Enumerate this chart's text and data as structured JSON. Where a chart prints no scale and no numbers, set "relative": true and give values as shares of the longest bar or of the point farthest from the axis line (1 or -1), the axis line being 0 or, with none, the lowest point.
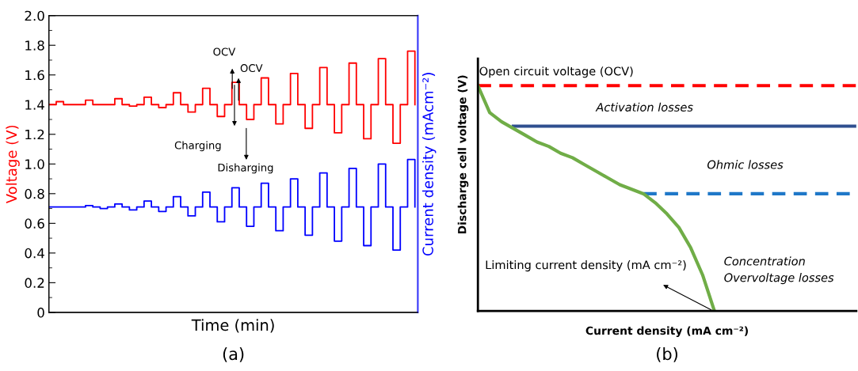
{
  "chart_data": [
    {
      "type": "step",
      "title": "(a)",
      "xlabel": "Time (min)",
      "ylabel": "Voltage (V)",
      "y2label": "Current density (mAcm⁻²)",
      "categories": [
        null,
        null,
        null,
        null,
        null,
        null,
        null,
        null,
        null,
        null,
        null,
        null,
        null,
        null,
        null,
        null,
        null,
        null,
        null,
        null,
        null,
        null,
        null,
        null,
        null,
        null,
        null,
        null,
        null,
        null,
        null,
        null,
        null,
        null,
        null,
        null,
        null,
        null,
        null,
        null,
        null,
        null,
        null,
        null,
        null,
        null,
        null,
        null,
        null,
        null,
        null
      ],
      "series": [
        {
          "color": "#ff0000",
          "values": [
            1.4,
            1.42,
            1.4,
            1.4,
            1.4,
            1.43,
            1.4,
            1.4,
            1.4,
            1.44,
            1.4,
            1.39,
            1.4,
            1.45,
            1.4,
            1.38,
            1.4,
            1.48,
            1.4,
            1.35,
            1.4,
            1.51,
            1.4,
            1.32,
            1.4,
            1.55,
            1.4,
            1.3,
            1.4,
            1.58,
            1.4,
            1.27,
            1.4,
            1.61,
            1.4,
            1.24,
            1.4,
            1.65,
            1.4,
            1.21,
            1.4,
            1.68,
            1.4,
            1.17,
            1.4,
            1.71,
            1.4,
            1.14,
            1.4,
            1.76,
            1.4
          ]
        },
        {
          "color": "#0000ff",
          "values": [
            0.71,
            0.71,
            0.71,
            0.71,
            0.71,
            0.72,
            0.71,
            0.7,
            0.71,
            0.73,
            0.71,
            0.69,
            0.71,
            0.75,
            0.71,
            0.68,
            0.71,
            0.78,
            0.71,
            0.65,
            0.71,
            0.81,
            0.71,
            0.61,
            0.71,
            0.84,
            0.71,
            0.58,
            0.71,
            0.87,
            0.71,
            0.55,
            0.71,
            0.9,
            0.71,
            0.52,
            0.71,
            0.94,
            0.71,
            0.48,
            0.71,
            0.97,
            0.71,
            0.45,
            0.71,
            1.0,
            0.71,
            0.42,
            0.71,
            1.03,
            0.71
          ]
        }
      ],
      "ylim": [
        0,
        2
      ],
      "yticks": [
        0,
        {
          "value": 0.1,
          "label": null
        },
        0.2,
        {
          "value": 0.3,
          "label": null
        },
        0.4,
        {
          "value": 0.5,
          "label": null
        },
        0.6,
        {
          "value": 0.7,
          "label": null
        },
        0.8,
        {
          "value": 0.9,
          "label": null
        },
        {
          "value": 1.0,
          "label": "1.0"
        },
        {
          "value": 1.1,
          "label": null
        },
        1.2,
        {
          "value": 1.3,
          "label": null
        },
        1.4,
        {
          "value": 1.5,
          "label": null
        },
        1.6,
        {
          "value": 1.7,
          "label": null
        },
        1.8,
        {
          "value": 1.9,
          "label": null
        },
        {
          "value": 2.0,
          "label": "2.0"
        }
      ],
      "annotations": [
        "OCV",
        "OCV",
        "Charging",
        "Disharging"
      ],
      "grid": false,
      "legend": false
    },
    {
      "type": "line",
      "title": "(b)",
      "xlabel": "Current density (mA cm⁻²)",
      "ylabel": "Discharge cell voltage (V)",
      "relative": true,
      "marker": "none",
      "categories": [
        null,
        null,
        null,
        null,
        null,
        null,
        null,
        null,
        null,
        null,
        null,
        null,
        null,
        null,
        null,
        null,
        null,
        null,
        null,
        null,
        null,
        null,
        null,
        null,
        null,
        null,
        null,
        null,
        null,
        null,
        null,
        null,
        null
      ],
      "series": [
        {
          "color": "#ff0000",
          "line_style": "dashed",
          "values": [
            1.0,
            1.0,
            1.0,
            1.0,
            1.0,
            1.0,
            1.0,
            1.0,
            1.0,
            1.0,
            1.0,
            1.0,
            1.0,
            1.0,
            1.0,
            1.0,
            1.0,
            1.0,
            1.0,
            1.0,
            1.0,
            1.0,
            1.0,
            1.0,
            1.0,
            1.0,
            1.0,
            1.0,
            1.0,
            1.0,
            1.0,
            1.0,
            1.0
          ]
        },
        {
          "color": "#2f4f8f",
          "line_style": "solid",
          "values": [
            null,
            null,
            null,
            0.82,
            0.82,
            0.82,
            0.82,
            0.82,
            0.82,
            0.82,
            0.82,
            0.82,
            0.82,
            0.82,
            0.82,
            0.82,
            0.82,
            0.82,
            0.82,
            0.82,
            0.82,
            0.82,
            0.82,
            0.82,
            0.82,
            0.82,
            0.82,
            0.82,
            0.82,
            0.82,
            0.82,
            0.82,
            0.82
          ]
        },
        {
          "color": "#1f78c8",
          "line_style": "dashed",
          "values": [
            null,
            null,
            null,
            null,
            null,
            null,
            null,
            null,
            null,
            null,
            null,
            null,
            null,
            null,
            0.52,
            0.52,
            0.52,
            0.52,
            0.52,
            0.52,
            0.52,
            0.52,
            0.52,
            0.52,
            0.52,
            0.52,
            0.52,
            0.52,
            0.52,
            0.52,
            0.52,
            0.52,
            0.52
          ]
        },
        {
          "color": "#70ad47",
          "line_style": "solid",
          "values": [
            1.0,
            0.88,
            0.84,
            0.81,
            0.78,
            0.75,
            0.73,
            0.7,
            0.68,
            0.65,
            0.62,
            0.59,
            0.56,
            0.54,
            0.52,
            0.48,
            0.43,
            0.37,
            0.28,
            0.16,
            0.0,
            null,
            null,
            null,
            null,
            null,
            null,
            null,
            null,
            null,
            null,
            null,
            null
          ]
        }
      ],
      "annotations": [
        "Open circuit voltage (OCV)",
        "Activation losses",
        "Ohmic losses",
        "Concentration\nOvervoltage losses",
        "Limiting current density (mA cm⁻²)"
      ],
      "grid": false,
      "legend": false
    }
  ]
}
